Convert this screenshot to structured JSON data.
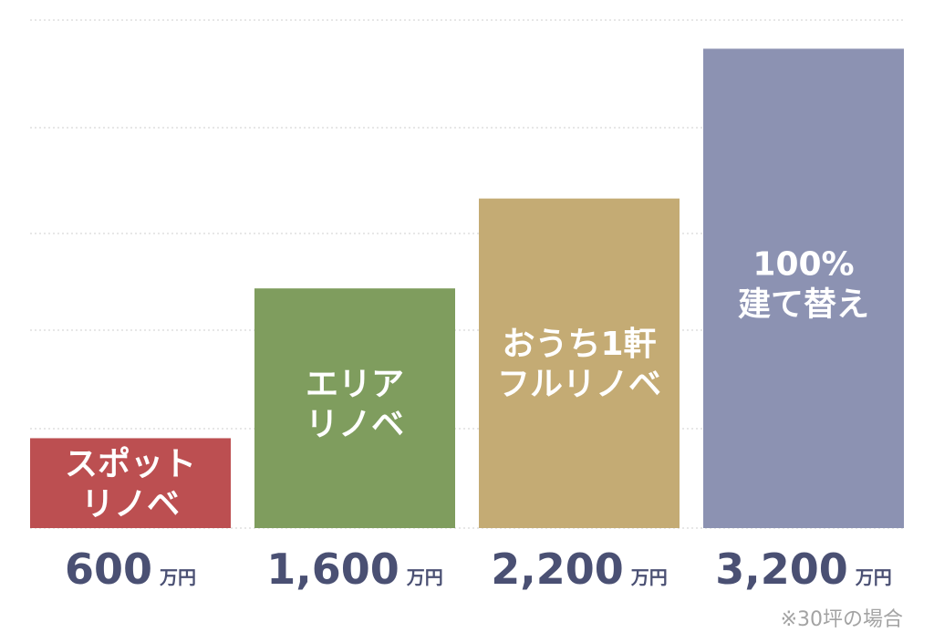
{
  "chart_data": {
    "type": "bar",
    "categories": [
      [
        "スポット",
        "リノベ"
      ],
      [
        "エリア",
        "リノベ"
      ],
      [
        "おうち1軒",
        "フルリノベ"
      ],
      [
        "100%",
        "建て替え"
      ]
    ],
    "values": [
      600,
      1600,
      2200,
      3200
    ],
    "value_labels": [
      "600",
      "1,600",
      "2,200",
      "3,200"
    ],
    "unit": "万円",
    "colors": [
      "#bc4f51",
      "#7f9d5e",
      "#c4ab74",
      "#8c92b2"
    ],
    "ylim": [
      0,
      3300
    ],
    "grid": true,
    "footnote": "※30坪の場合"
  }
}
